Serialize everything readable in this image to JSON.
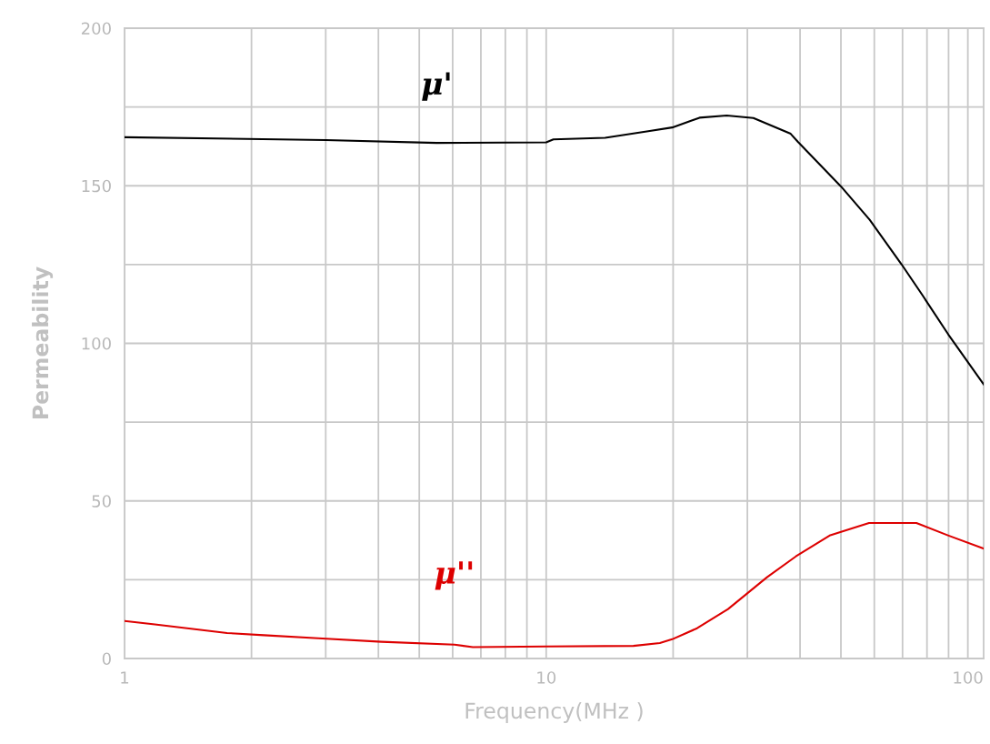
{
  "chart_data": {
    "type": "line",
    "xlabel": "Frequency(MHz )",
    "ylabel": "Permeability",
    "log": "x",
    "grid": true,
    "legend": false,
    "line_style": "solid",
    "marker": "none",
    "xlim": [
      1,
      109
    ],
    "ylim": [
      0,
      200
    ],
    "xticks": [
      1,
      {
        "value": 2,
        "label": null
      },
      {
        "value": 3,
        "label": null
      },
      {
        "value": 4,
        "label": null
      },
      {
        "value": 5,
        "label": null
      },
      {
        "value": 6,
        "label": null
      },
      {
        "value": 7,
        "label": null
      },
      {
        "value": 8,
        "label": null
      },
      {
        "value": 9,
        "label": null
      },
      10,
      {
        "value": 20,
        "label": null
      },
      {
        "value": 30,
        "label": null
      },
      {
        "value": 40,
        "label": null
      },
      {
        "value": 50,
        "label": null
      },
      {
        "value": 60,
        "label": null
      },
      {
        "value": 70,
        "label": null
      },
      {
        "value": 80,
        "label": null
      },
      {
        "value": 90,
        "label": null
      },
      100
    ],
    "yticks": [
      0,
      {
        "value": 25,
        "label": null
      },
      50,
      {
        "value": 75,
        "label": null
      },
      100,
      {
        "value": 125,
        "label": null
      },
      150,
      {
        "value": 175,
        "label": null
      },
      200
    ],
    "series": [
      {
        "name": "μ'",
        "color": "#000000",
        "x": [
          1,
          3,
          5.5,
          10,
          10.4,
          13.8,
          17.6,
          19.9,
          23.1,
          26.8,
          31,
          38,
          39.5,
          50,
          58.5,
          69.6,
          78.3,
          89.9,
          109
        ],
        "values": [
          165.4,
          164.5,
          163.6,
          163.8,
          164.7,
          165.2,
          167.4,
          168.5,
          171.6,
          172.3,
          171.5,
          166.5,
          164,
          149.8,
          139.2,
          125.1,
          115,
          102.8,
          87
        ]
      },
      {
        "name": "μ''",
        "color": "#dd0000",
        "x": [
          1,
          1.18,
          1.75,
          2.14,
          2.88,
          4.07,
          6.06,
          6.7,
          10,
          16.1,
          18.6,
          19.9,
          22.8,
          27,
          33.4,
          39.1,
          47,
          58.3,
          75.5,
          90,
          109
        ],
        "values": [
          11.9,
          10.8,
          8.1,
          7.4,
          6.4,
          5.3,
          4.4,
          3.6,
          3.8,
          4,
          4.9,
          6.1,
          9.6,
          15.7,
          25.8,
          32.4,
          39,
          43,
          43,
          39,
          34.9
        ]
      }
    ]
  }
}
